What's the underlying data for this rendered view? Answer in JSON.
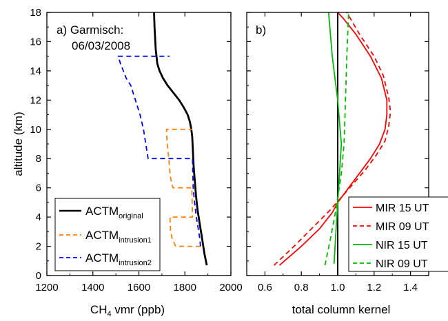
{
  "chart_data": [
    {
      "type": "line",
      "panel_label": "a) Garmisch:",
      "panel_date": "06/03/2008",
      "xlabel_main": "CH",
      "xlabel_sub": "4",
      "xlabel_rest": " vmr (ppb)",
      "ylabel": "altitude (km)",
      "xlim": [
        1200,
        2000
      ],
      "ylim": [
        0,
        18
      ],
      "xticks": [
        1200,
        1400,
        1600,
        1800,
        2000
      ],
      "yticks": [
        0,
        2,
        4,
        6,
        8,
        10,
        12,
        14,
        16,
        18
      ],
      "grid": false,
      "legend_position": "bottom-left",
      "series": [
        {
          "name": "ACTM",
          "name_sub": "original",
          "color": "#000000",
          "dash": "solid",
          "x": [
            1895,
            1885,
            1875,
            1865,
            1855,
            1848,
            1843,
            1838,
            1835,
            1832,
            1828,
            1822,
            1812,
            1795,
            1775,
            1750,
            1725,
            1705,
            1690,
            1680,
            1673,
            1668,
            1666
          ],
          "y": [
            0.7,
            1.5,
            2.5,
            3.5,
            4.5,
            5.5,
            6.5,
            7.5,
            8.5,
            9.5,
            10.0,
            10.5,
            11.0,
            11.5,
            12.0,
            12.5,
            13.0,
            13.5,
            14.0,
            14.5,
            15.5,
            17.0,
            18.0
          ]
        },
        {
          "name": "ACTM",
          "name_sub": "intrusion1",
          "color": "#ff8000",
          "dash": "dashed",
          "x": [
            1868,
            1865,
            1760,
            1745,
            1738,
            1735,
            1770,
            1833,
            1830,
            1748,
            1740,
            1735,
            1730,
            1723,
            1720,
            1757,
            1832
          ],
          "y": [
            2.0,
            2.0,
            2.0,
            2.5,
            3.0,
            4.0,
            4.0,
            4.0,
            6.0,
            6.0,
            6.5,
            7.0,
            8.0,
            9.0,
            10.0,
            10.0,
            10.0
          ]
        },
        {
          "name": "ACTM",
          "name_sub": "intrusion2",
          "color": "#0000ff",
          "dash": "dashed",
          "x": [
            1868,
            1865,
            1860,
            1855,
            1850,
            1842,
            1836,
            1833,
            1640,
            1630,
            1620,
            1605,
            1585,
            1565,
            1545,
            1520,
            1510,
            1690,
            1733
          ],
          "y": [
            2.0,
            2.5,
            3.0,
            3.5,
            4.0,
            5.0,
            6.0,
            8.0,
            8.0,
            9.0,
            10.0,
            11.0,
            12.0,
            13.0,
            13.5,
            14.5,
            15.0,
            15.0,
            15.0
          ]
        }
      ]
    },
    {
      "type": "line",
      "panel_label": "b)",
      "xlabel": "total column kernel",
      "xlim": [
        0.5,
        1.5
      ],
      "ylim": [
        0,
        18
      ],
      "xticks": [
        0.6,
        0.8,
        1.0,
        1.2,
        1.4
      ],
      "xtick_labels": [
        "0.6",
        "0.8",
        "1.0",
        "1.2",
        "1.4"
      ],
      "vline_at": 1.0,
      "grid": false,
      "legend_position": "bottom-right",
      "series": [
        {
          "name": "MIR 15 UT",
          "color": "#ff0000",
          "dash": "solid",
          "x": [
            0.68,
            0.8,
            0.9,
            0.97,
            1.0,
            1.06,
            1.12,
            1.18,
            1.23,
            1.26,
            1.27,
            1.27,
            1.24,
            1.18,
            1.1,
            1.03,
            1.0
          ],
          "y": [
            0.7,
            2.0,
            3.2,
            4.3,
            5.0,
            6.0,
            7.0,
            8.0,
            9.0,
            10.0,
            11.0,
            12.0,
            13.5,
            15.0,
            16.5,
            17.6,
            18.0
          ]
        },
        {
          "name": "MIR 09 UT",
          "color": "#ff0000",
          "dash": "dashed",
          "x": [
            0.65,
            0.76,
            0.88,
            0.96,
            1.01,
            1.08,
            1.15,
            1.21,
            1.26,
            1.28,
            1.29,
            1.28,
            1.25,
            1.2,
            1.12,
            1.05
          ],
          "y": [
            0.7,
            2.0,
            3.5,
            4.5,
            5.2,
            6.2,
            7.2,
            8.2,
            9.2,
            10.2,
            11.2,
            12.2,
            13.7,
            15.0,
            16.5,
            18.0
          ]
        },
        {
          "name": "NIR 15 UT",
          "color": "#00bb00",
          "dash": "solid",
          "x": [
            0.98,
            0.99,
            1.0,
            1.01,
            1.02,
            1.01,
            1.0,
            0.985,
            0.97,
            0.96,
            0.95
          ],
          "y": [
            0.8,
            3.0,
            5.0,
            7.0,
            9.0,
            10.5,
            12.0,
            13.5,
            15.0,
            16.5,
            18.0
          ]
        },
        {
          "name": "NIR 09 UT",
          "color": "#00bb00",
          "dash": "dashed",
          "x": [
            0.93,
            0.96,
            0.99,
            1.02,
            1.035,
            1.04,
            1.045,
            1.05,
            1.055,
            1.06
          ],
          "y": [
            0.7,
            2.5,
            4.5,
            7.0,
            9.0,
            11.0,
            13.0,
            15.0,
            16.5,
            18.0
          ]
        }
      ]
    }
  ]
}
